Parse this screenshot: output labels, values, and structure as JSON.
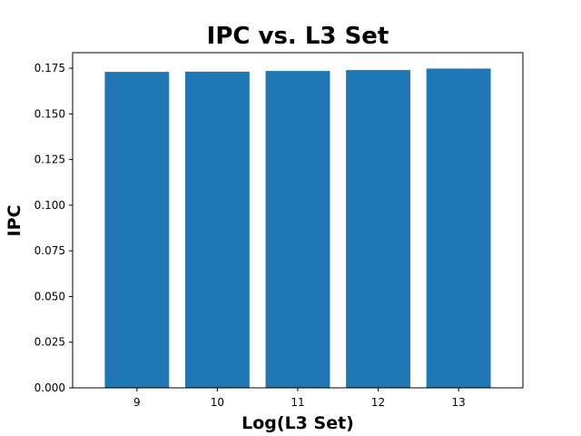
{
  "chart_data": {
    "type": "bar",
    "title": "IPC vs. L3 Set",
    "xlabel": "Log(L3 Set)",
    "ylabel": "IPC",
    "categories": [
      "9",
      "10",
      "11",
      "12",
      "13"
    ],
    "values": [
      0.173,
      0.1731,
      0.1735,
      0.174,
      0.1748
    ],
    "ylim": [
      0,
      0.1835
    ],
    "yticks": [
      "0.000",
      "0.025",
      "0.050",
      "0.075",
      "0.100",
      "0.125",
      "0.150",
      "0.175"
    ],
    "grid": false,
    "bar_color": "#1f77b4"
  }
}
